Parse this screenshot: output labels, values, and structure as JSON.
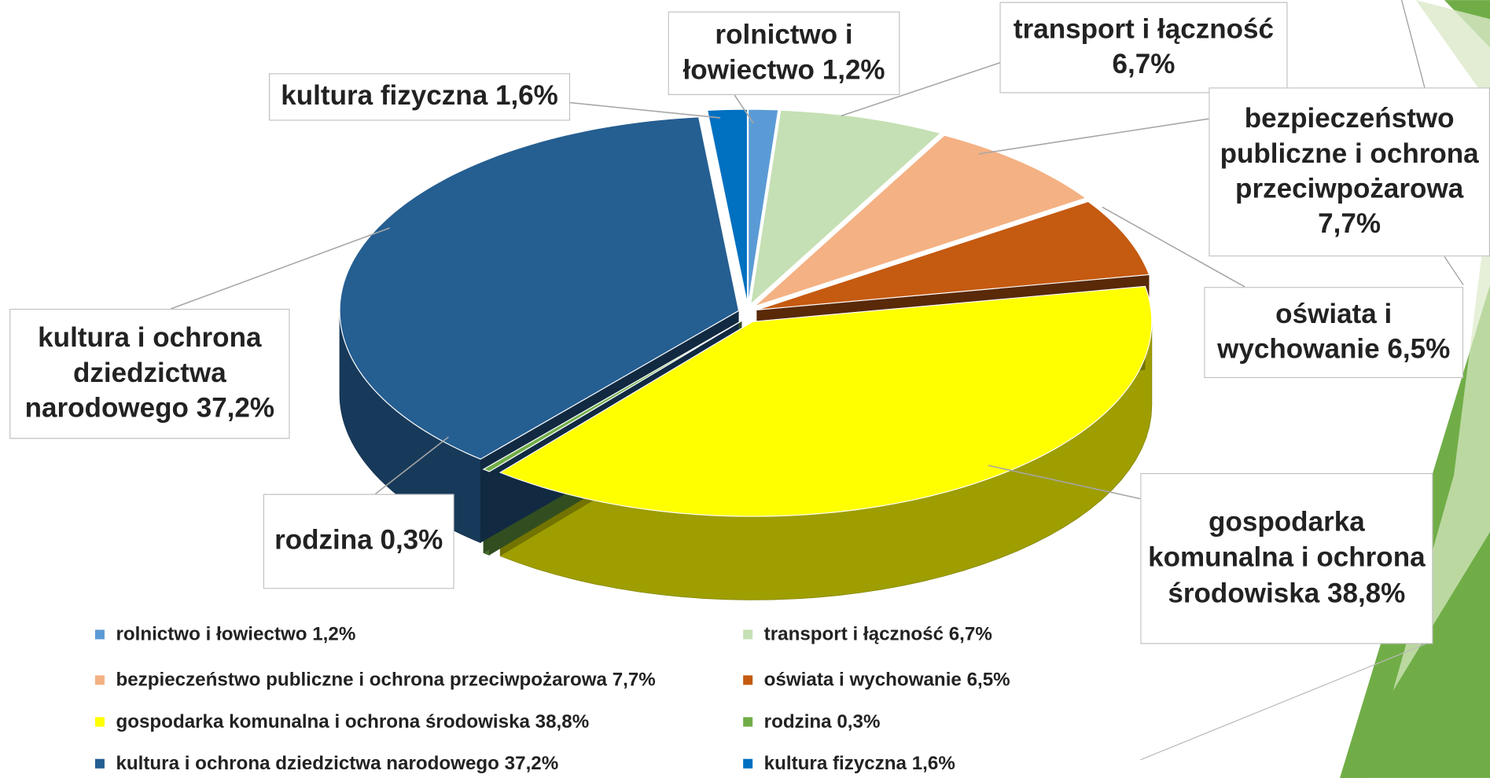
{
  "chart_data": {
    "type": "pie",
    "categories": [
      "rolnictwo i łowiectwo",
      "transport i łączność",
      "bezpieczeństwo publiczne i ochrona przeciwpożarowa",
      "oświata i wychowanie",
      "gospodarka komunalna i ochrona środowiska",
      "rodzina",
      "kultura i ochrona dziedzictwa narodowego",
      "kultura fizyczna"
    ],
    "values": [
      1.2,
      6.7,
      7.7,
      6.5,
      38.8,
      0.3,
      37.2,
      1.6
    ],
    "value_labels": [
      "1,2%",
      "6,7%",
      "7,7%",
      "6,5%",
      "38,8%",
      "0,3%",
      "37,2%",
      "1,6%"
    ],
    "colors": [
      "#5b9bd5",
      "#c5e0b4",
      "#f4b183",
      "#c55a11",
      "#ffff00",
      "#70ad47",
      "#255e91",
      "#0070c0"
    ],
    "legend": "bottom"
  }
}
